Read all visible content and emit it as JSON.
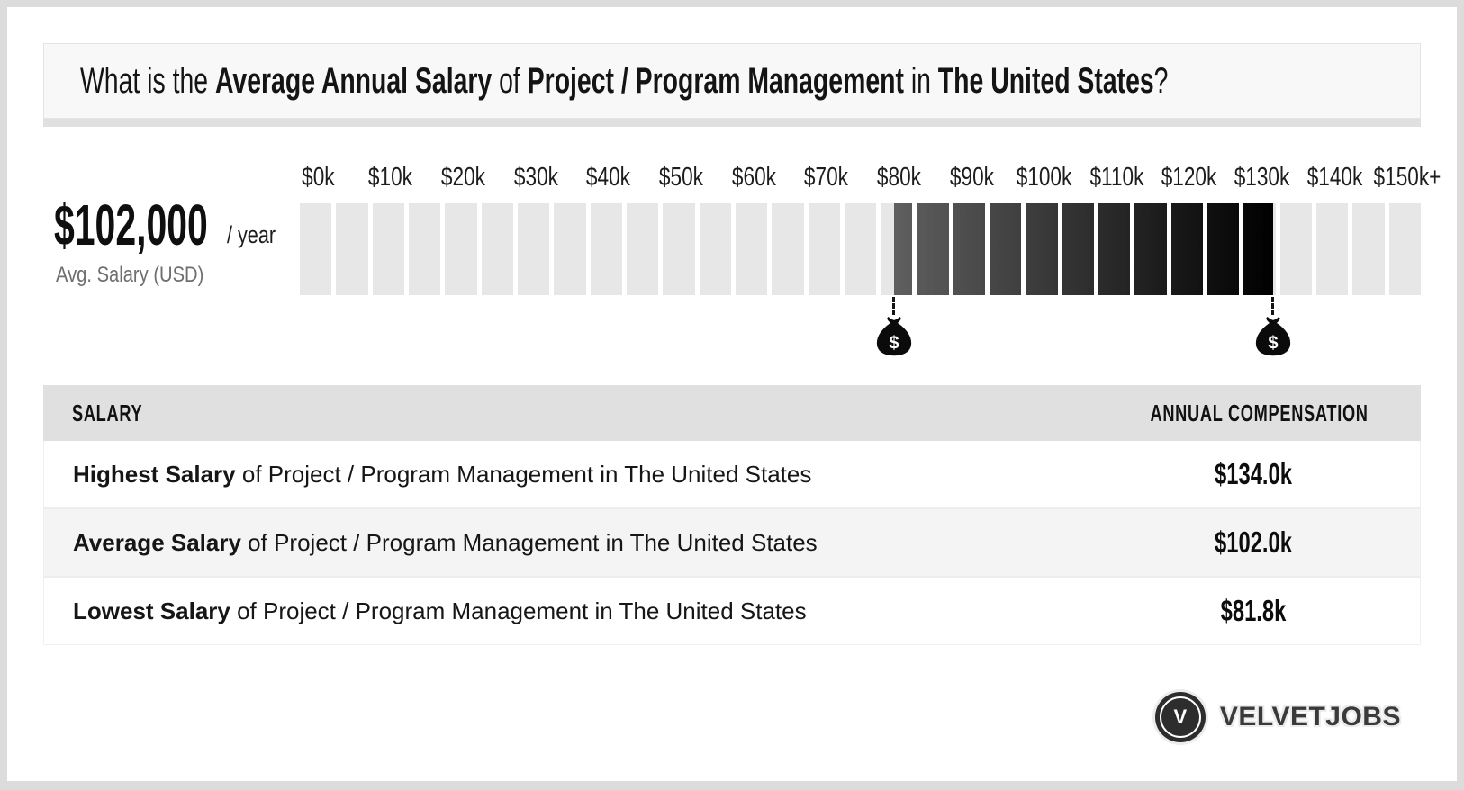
{
  "header": {
    "title_parts": [
      {
        "text": "What is the ",
        "bold": false
      },
      {
        "text": "Average Annual Salary",
        "bold": true
      },
      {
        "text": " of ",
        "bold": false
      },
      {
        "text": "Project / Program Management",
        "bold": true
      },
      {
        "text": " in ",
        "bold": false
      },
      {
        "text": "The United States",
        "bold": true
      },
      {
        "text": "?",
        "bold": false
      }
    ]
  },
  "summary": {
    "amount": "$102,000",
    "period": "/ year",
    "caption": "Avg. Salary (USD)"
  },
  "chart_data": {
    "type": "bar",
    "subtype": "salary-range-scale",
    "title": "Average Annual Salary of Project / Program Management in The United States",
    "tick_labels": [
      "$0k",
      "$10k",
      "$20k",
      "$30k",
      "$40k",
      "$50k",
      "$60k",
      "$70k",
      "$80k",
      "$90k",
      "$100k",
      "$110k",
      "$120k",
      "$130k",
      "$140k",
      "$150k+"
    ],
    "scale_min_k": 0,
    "scale_max_k": 155,
    "segments": 31,
    "segment_value_k": 5,
    "lowest_k": 81.8,
    "average_k": 102.0,
    "highest_k": 134.0,
    "fill_range_k": [
      81.8,
      134.0
    ],
    "markers": [
      {
        "name": "lowest",
        "value_k": 81.8
      },
      {
        "name": "highest",
        "value_k": 134.0
      }
    ],
    "marker_symbol": "$",
    "colors": {
      "empty_segment": "#e7e7e7",
      "fill_start": "#5f5f5f",
      "fill_end": "#000000",
      "gap": "#ffffff",
      "bag": "#0b0b0b"
    }
  },
  "table": {
    "col_salary": "SALARY",
    "col_compensation": "ANNUAL COMPENSATION",
    "rows": [
      {
        "key": "highest",
        "label_bold": "Highest Salary",
        "label_rest": " of Project / Program Management in The United States",
        "value": "$134.0k"
      },
      {
        "key": "average",
        "label_bold": "Average Salary",
        "label_rest": " of Project / Program Management in The United States",
        "value": "$102.0k"
      },
      {
        "key": "lowest",
        "label_bold": "Lowest Salary",
        "label_rest": " of Project / Program Management in The United States",
        "value": "$81.8k"
      }
    ]
  },
  "footer": {
    "brand": "VELVETJOBS",
    "logo_letter": "V"
  }
}
